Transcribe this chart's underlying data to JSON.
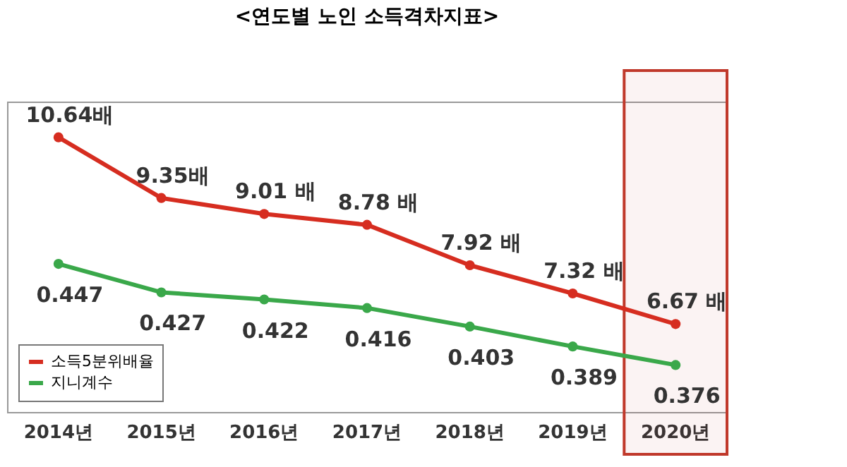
{
  "chart_data": {
    "type": "line",
    "title": "<연도별 노인 소득격차지표>",
    "categories": [
      "2014년",
      "2015년",
      "2016년",
      "2017년",
      "2018년",
      "2019년",
      "2020년"
    ],
    "series": [
      {
        "name": "소득5분위배율",
        "color": "#d62d20",
        "values": [
          10.64,
          9.35,
          9.01,
          8.78,
          7.92,
          7.32,
          6.67
        ],
        "value_labels": [
          "10.64배",
          "9.35배",
          "9.01 배",
          "8.78 배",
          "7.92 배",
          "7.32 배",
          "6.67 배"
        ]
      },
      {
        "name": "지니계수",
        "color": "#3aa84a",
        "axis": "y2",
        "values": [
          0.447,
          0.427,
          0.422,
          0.416,
          0.403,
          0.389,
          0.376
        ],
        "value_labels": [
          "0.447",
          "0.427",
          "0.422",
          "0.416",
          "0.403",
          "0.389",
          "0.376"
        ]
      }
    ],
    "ylim": [
      4.8,
      11.4
    ],
    "y2lim": [
      0.343,
      0.561
    ],
    "bands": [
      {
        "axis": "x",
        "from": "2020년",
        "to": "2020년",
        "color": "#c0392b"
      }
    ],
    "tick_labels": "x",
    "legend": "bottom left",
    "marker": "circle",
    "line_style": "solid",
    "grid": false
  }
}
